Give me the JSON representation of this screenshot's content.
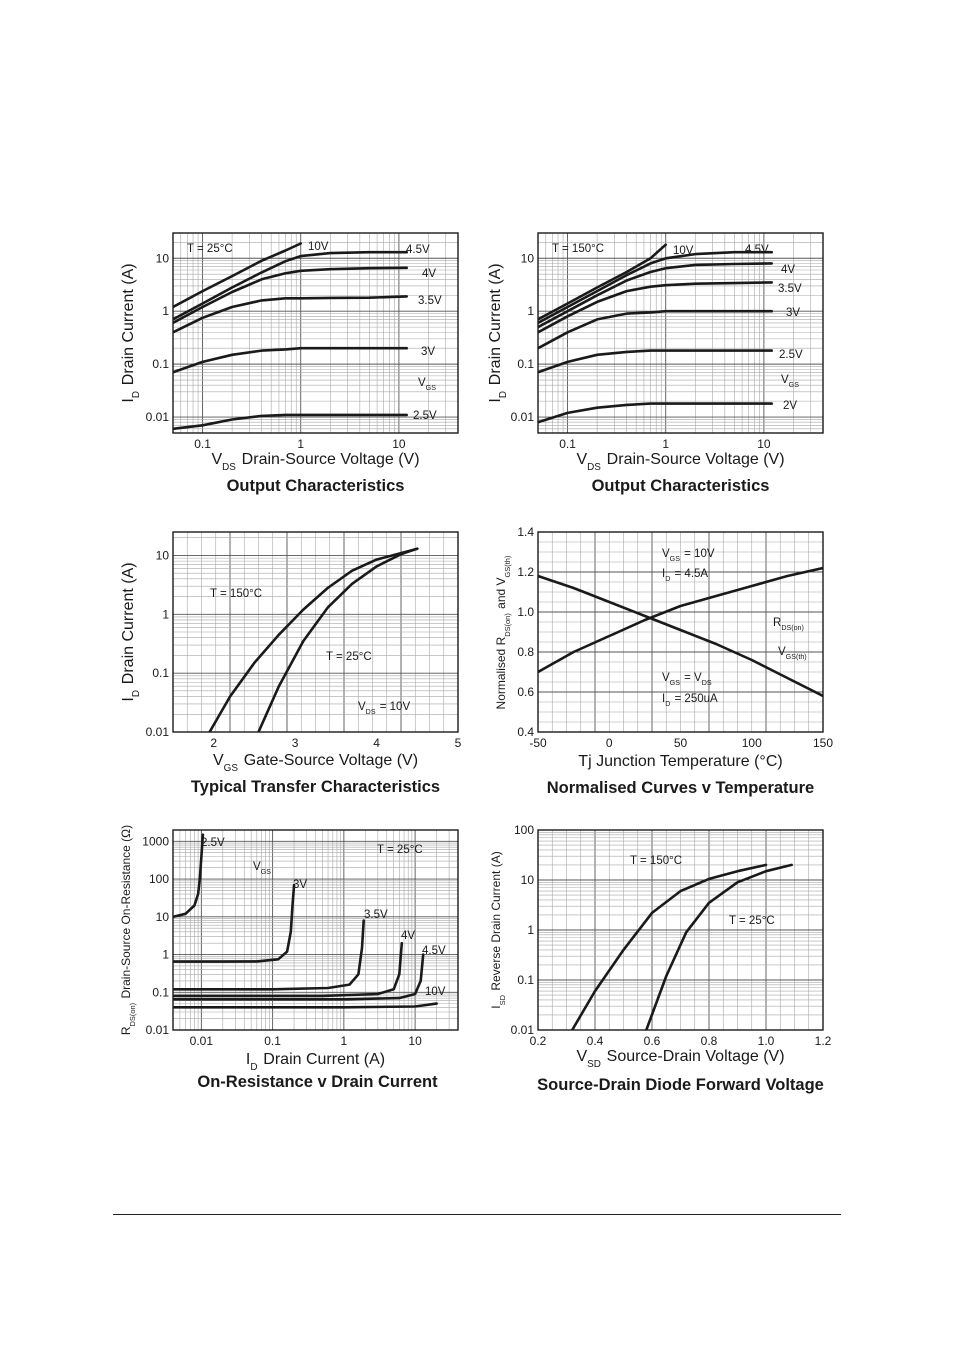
{
  "chart_data": [
    {
      "type": "line",
      "title": "Output Characteristics",
      "xlabel": "V_DS Drain-Source Voltage (V)",
      "ylabel": "I_D Drain Current (A)",
      "xscale": "log",
      "yscale": "log",
      "xlim": [
        0.05,
        40
      ],
      "ylim": [
        0.005,
        30
      ],
      "xticks": [
        {
          "v": 0.1,
          "label": "0.1"
        },
        {
          "v": 1,
          "label": "1"
        },
        {
          "v": 10,
          "label": "10"
        }
      ],
      "yticks": [
        {
          "v": 0.01,
          "label": "0.01"
        },
        {
          "v": 0.1,
          "label": "0.1"
        },
        {
          "v": 1,
          "label": "1"
        },
        {
          "v": 10,
          "label": "10"
        }
      ],
      "annotations": [
        {
          "text": "T = 25°C",
          "pos": "top-left"
        },
        {
          "text": "V_GS",
          "pos": "right"
        }
      ],
      "series": [
        {
          "name": "10V",
          "x": [
            0.05,
            0.1,
            0.2,
            0.4,
            0.7,
            1.0
          ],
          "y": [
            1.2,
            2.4,
            4.6,
            9,
            14,
            19
          ]
        },
        {
          "name": "4.5V",
          "x": [
            0.05,
            0.1,
            0.2,
            0.4,
            0.7,
            1,
            2,
            5,
            12
          ],
          "y": [
            0.7,
            1.4,
            2.8,
            5.4,
            8.8,
            11,
            12.5,
            13,
            13
          ]
        },
        {
          "name": "4V",
          "x": [
            0.05,
            0.1,
            0.2,
            0.4,
            0.7,
            1,
            2,
            5,
            12
          ],
          "y": [
            0.6,
            1.2,
            2.3,
            4.0,
            5.2,
            5.8,
            6.2,
            6.5,
            6.6
          ]
        },
        {
          "name": "3.5V",
          "x": [
            0.05,
            0.1,
            0.2,
            0.4,
            0.7,
            1,
            2,
            5,
            12
          ],
          "y": [
            0.4,
            0.75,
            1.2,
            1.6,
            1.75,
            1.75,
            1.78,
            1.8,
            1.9
          ]
        },
        {
          "name": "3V",
          "x": [
            0.05,
            0.1,
            0.2,
            0.4,
            0.7,
            1,
            2,
            5,
            12
          ],
          "y": [
            0.07,
            0.11,
            0.15,
            0.18,
            0.19,
            0.2,
            0.2,
            0.2,
            0.2
          ]
        },
        {
          "name": "2.5V",
          "x": [
            0.05,
            0.1,
            0.2,
            0.4,
            0.7,
            1,
            2,
            5,
            12
          ],
          "y": [
            0.006,
            0.007,
            0.009,
            0.0105,
            0.011,
            0.011,
            0.011,
            0.011,
            0.011
          ]
        }
      ]
    },
    {
      "type": "line",
      "title": "Output Characteristics",
      "xlabel": "V_DS Drain-Source Voltage (V)",
      "ylabel": "I_D Drain Current (A)",
      "xscale": "log",
      "yscale": "log",
      "xlim": [
        0.05,
        40
      ],
      "ylim": [
        0.005,
        30
      ],
      "xticks": [
        {
          "v": 0.1,
          "label": "0.1"
        },
        {
          "v": 1,
          "label": "1"
        },
        {
          "v": 10,
          "label": "10"
        }
      ],
      "yticks": [
        {
          "v": 0.01,
          "label": "0.01"
        },
        {
          "v": 0.1,
          "label": "0.1"
        },
        {
          "v": 1,
          "label": "1"
        },
        {
          "v": 10,
          "label": "10"
        }
      ],
      "annotations": [
        {
          "text": "T = 150°C",
          "pos": "top-left"
        },
        {
          "text": "V_GS",
          "pos": "right"
        }
      ],
      "series": [
        {
          "name": "10V",
          "x": [
            0.05,
            0.1,
            0.2,
            0.4,
            0.7,
            1.0
          ],
          "y": [
            0.7,
            1.4,
            2.8,
            5.5,
            10,
            18
          ]
        },
        {
          "name": "4.5V",
          "x": [
            0.05,
            0.1,
            0.2,
            0.4,
            0.7,
            1,
            2,
            5,
            12
          ],
          "y": [
            0.6,
            1.2,
            2.4,
            4.8,
            8,
            10,
            12,
            13,
            13
          ]
        },
        {
          "name": "4V",
          "x": [
            0.05,
            0.1,
            0.2,
            0.4,
            0.7,
            1,
            2,
            5,
            12
          ],
          "y": [
            0.5,
            1.0,
            2.0,
            3.8,
            5.5,
            6.5,
            7.5,
            7.8,
            8
          ]
        },
        {
          "name": "3.5V",
          "x": [
            0.05,
            0.1,
            0.2,
            0.4,
            0.7,
            1,
            2,
            5,
            12
          ],
          "y": [
            0.4,
            0.8,
            1.5,
            2.4,
            2.9,
            3.1,
            3.3,
            3.4,
            3.5
          ]
        },
        {
          "name": "3V",
          "x": [
            0.05,
            0.1,
            0.2,
            0.4,
            0.7,
            1,
            2,
            5,
            12
          ],
          "y": [
            0.2,
            0.4,
            0.7,
            0.9,
            0.95,
            1.0,
            1.0,
            1.0,
            1.0
          ]
        },
        {
          "name": "2.5V",
          "x": [
            0.05,
            0.1,
            0.2,
            0.4,
            0.7,
            1,
            2,
            5,
            12
          ],
          "y": [
            0.07,
            0.11,
            0.15,
            0.17,
            0.18,
            0.18,
            0.18,
            0.18,
            0.18
          ]
        },
        {
          "name": "2V",
          "x": [
            0.05,
            0.1,
            0.2,
            0.4,
            0.7,
            1,
            2,
            5,
            12
          ],
          "y": [
            0.008,
            0.012,
            0.015,
            0.017,
            0.018,
            0.018,
            0.018,
            0.018,
            0.018
          ]
        }
      ]
    },
    {
      "type": "line",
      "title": "Typical Transfer Characteristics",
      "xlabel": "V_GS Gate-Source Voltage (V)",
      "ylabel": "I_D Drain Current (A)",
      "xscale": "linear",
      "yscale": "log",
      "xlim": [
        1.5,
        5
      ],
      "ylim": [
        0.01,
        25
      ],
      "xticks": [
        {
          "v": 2,
          "label": "2"
        },
        {
          "v": 3,
          "label": "3"
        },
        {
          "v": 4,
          "label": "4"
        },
        {
          "v": 5,
          "label": "5"
        }
      ],
      "yticks": [
        {
          "v": 0.01,
          "label": "0.01"
        },
        {
          "v": 0.1,
          "label": "0.1"
        },
        {
          "v": 1,
          "label": "1"
        },
        {
          "v": 10,
          "label": "10"
        }
      ],
      "annotations": [
        {
          "text": "V_DS = 10V",
          "pos": "bottom-right"
        }
      ],
      "series": [
        {
          "name": "T = 150°C",
          "x": [
            1.95,
            2.2,
            2.5,
            2.8,
            3.1,
            3.4,
            3.7,
            4.0,
            4.5
          ],
          "y": [
            0.01,
            0.04,
            0.15,
            0.45,
            1.2,
            2.8,
            5.5,
            8.5,
            13
          ]
        },
        {
          "name": "T = 25°C",
          "x": [
            2.55,
            2.8,
            3.1,
            3.4,
            3.7,
            4.0,
            4.3,
            4.5
          ],
          "y": [
            0.01,
            0.06,
            0.35,
            1.3,
            3.3,
            6.5,
            10.5,
            13
          ]
        }
      ]
    },
    {
      "type": "line",
      "title": "Normalised Curves v Temperature",
      "xlabel": "Tj Junction Temperature (°C)",
      "ylabel": "Normalised R_DS(on) and V_GS(th)",
      "xscale": "linear",
      "yscale": "linear",
      "xlim": [
        -50,
        150
      ],
      "ylim": [
        0.4,
        1.4
      ],
      "xticks": [
        {
          "v": -50,
          "label": "-50"
        },
        {
          "v": 0,
          "label": "0"
        },
        {
          "v": 50,
          "label": "50"
        },
        {
          "v": 100,
          "label": "100"
        },
        {
          "v": 150,
          "label": "150"
        }
      ],
      "yticks": [
        {
          "v": 0.4,
          "label": "0.4"
        },
        {
          "v": 0.6,
          "label": "0.6"
        },
        {
          "v": 0.8,
          "label": "0.8"
        },
        {
          "v": 1.0,
          "label": "1.0"
        },
        {
          "v": 1.2,
          "label": "1.2"
        },
        {
          "v": 1.4,
          "label": "1.4"
        }
      ],
      "annotations": [
        {
          "text": "V_GS = 10V",
          "pos": "top"
        },
        {
          "text": "I_D = 4.5A",
          "pos": "top"
        },
        {
          "text": "V_GS = V_DS",
          "pos": "bottom"
        },
        {
          "text": "I_D = 250uA",
          "pos": "bottom"
        }
      ],
      "series": [
        {
          "name": "R_DS(on)",
          "x": [
            -50,
            -25,
            0,
            25,
            50,
            75,
            100,
            125,
            150
          ],
          "y": [
            0.7,
            0.8,
            0.88,
            0.96,
            1.03,
            1.08,
            1.13,
            1.18,
            1.22
          ]
        },
        {
          "name": "V_GS(th)",
          "x": [
            -50,
            -25,
            0,
            25,
            50,
            75,
            100,
            125,
            150
          ],
          "y": [
            1.18,
            1.12,
            1.05,
            0.98,
            0.91,
            0.84,
            0.76,
            0.67,
            0.58
          ]
        }
      ]
    },
    {
      "type": "line",
      "title": "On-Resistance v Drain Current",
      "xlabel": "I_D Drain Current (A)",
      "ylabel": "R_DS(on) Drain-Source On-Resistance (Ω)",
      "xscale": "log",
      "yscale": "log",
      "xlim": [
        0.004,
        40
      ],
      "ylim": [
        0.01,
        2000
      ],
      "xticks": [
        {
          "v": 0.01,
          "label": "0.01"
        },
        {
          "v": 0.1,
          "label": "0.1"
        },
        {
          "v": 1,
          "label": "1"
        },
        {
          "v": 10,
          "label": "10"
        }
      ],
      "yticks": [
        {
          "v": 0.01,
          "label": "0.01"
        },
        {
          "v": 0.1,
          "label": "0.1"
        },
        {
          "v": 1,
          "label": "1"
        },
        {
          "v": 10,
          "label": "10"
        },
        {
          "v": 100,
          "label": "100"
        },
        {
          "v": 1000,
          "label": "1000"
        }
      ],
      "annotations": [
        {
          "text": "T = 25°C",
          "pos": "top-right"
        },
        {
          "text": "V_GS",
          "pos": "top"
        }
      ],
      "series": [
        {
          "name": "2.5V",
          "x": [
            0.004,
            0.006,
            0.008,
            0.009,
            0.0095,
            0.01,
            0.0105
          ],
          "y": [
            10,
            12,
            20,
            40,
            100,
            400,
            1500
          ]
        },
        {
          "name": "3V",
          "x": [
            0.004,
            0.02,
            0.06,
            0.12,
            0.16,
            0.18,
            0.19,
            0.2
          ],
          "y": [
            0.65,
            0.65,
            0.66,
            0.75,
            1.2,
            4,
            20,
            70
          ]
        },
        {
          "name": "3.5V",
          "x": [
            0.004,
            0.1,
            0.6,
            1.2,
            1.6,
            1.8,
            1.9
          ],
          "y": [
            0.12,
            0.12,
            0.13,
            0.16,
            0.3,
            1.5,
            8
          ]
        },
        {
          "name": "4V",
          "x": [
            0.004,
            0.5,
            3,
            5,
            6,
            6.5
          ],
          "y": [
            0.08,
            0.08,
            0.09,
            0.12,
            0.3,
            2
          ]
        },
        {
          "name": "4.5V",
          "x": [
            0.004,
            1,
            6,
            10,
            12,
            13
          ],
          "y": [
            0.065,
            0.065,
            0.07,
            0.09,
            0.2,
            1
          ]
        },
        {
          "name": "10V",
          "x": [
            0.004,
            1,
            10,
            20
          ],
          "y": [
            0.04,
            0.04,
            0.042,
            0.05
          ]
        }
      ]
    },
    {
      "type": "line",
      "title": "Source-Drain Diode Forward Voltage",
      "xlabel": "V_SD Source-Drain Voltage (V)",
      "ylabel": "I_SD Reverse Drain Current (A)",
      "xscale": "linear",
      "yscale": "log",
      "xlim": [
        0.2,
        1.2
      ],
      "ylim": [
        0.01,
        100
      ],
      "xticks": [
        {
          "v": 0.2,
          "label": "0.2"
        },
        {
          "v": 0.4,
          "label": "0.4"
        },
        {
          "v": 0.6,
          "label": "0.6"
        },
        {
          "v": 0.8,
          "label": "0.8"
        },
        {
          "v": 1.0,
          "label": "1.0"
        },
        {
          "v": 1.2,
          "label": "1.2"
        }
      ],
      "yticks": [
        {
          "v": 0.01,
          "label": "0.01"
        },
        {
          "v": 0.1,
          "label": "0.1"
        },
        {
          "v": 1,
          "label": "1"
        },
        {
          "v": 10,
          "label": "10"
        },
        {
          "v": 100,
          "label": "100"
        }
      ],
      "annotations": [],
      "series": [
        {
          "name": "T = 150°C",
          "x": [
            0.32,
            0.4,
            0.5,
            0.6,
            0.7,
            0.8,
            0.9,
            1.0
          ],
          "y": [
            0.01,
            0.06,
            0.4,
            2.2,
            6,
            10.5,
            15,
            20
          ]
        },
        {
          "name": "T = 25°C",
          "x": [
            0.58,
            0.65,
            0.72,
            0.8,
            0.9,
            1.0,
            1.09
          ],
          "y": [
            0.01,
            0.12,
            0.9,
            3.5,
            9,
            15,
            20
          ]
        }
      ]
    }
  ]
}
